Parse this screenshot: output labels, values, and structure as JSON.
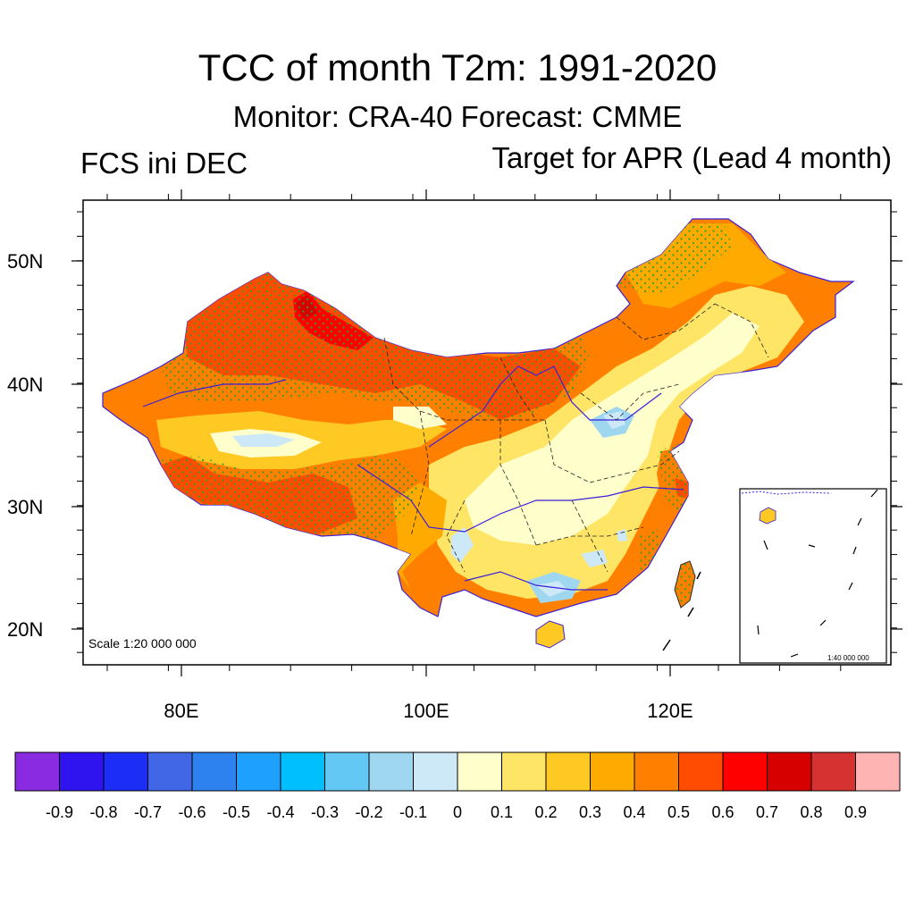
{
  "title": "TCC of month T2m: 1991-2020",
  "subtitle": "Monitor: CRA-40   Forecast: CMME",
  "left_label": "FCS ini DEC",
  "right_label": "Target for APR (Lead 4 month)",
  "scale_main": "Scale 1:20 000 000",
  "scale_inset": "1:40 000 000",
  "lat_ticks": [
    "50N",
    "40N",
    "30N",
    "20N"
  ],
  "lon_ticks": [
    "80E",
    "100E",
    "120E"
  ],
  "colorbar": {
    "colors": [
      "#8a2be2",
      "#3014f0",
      "#1c2ef5",
      "#4166e6",
      "#2e82f0",
      "#1ea0ff",
      "#00bfff",
      "#64c8f5",
      "#a0d7f0",
      "#cde9f7",
      "#ffffcc",
      "#ffe566",
      "#ffc924",
      "#ffaa00",
      "#ff8000",
      "#ff4c00",
      "#ff0000",
      "#d70000",
      "#d73232",
      "#ffb4b4"
    ],
    "labels": [
      "-0.9",
      "-0.8",
      "-0.7",
      "-0.6",
      "-0.5",
      "-0.4",
      "-0.3",
      "-0.2",
      "-0.1",
      "0",
      "0.1",
      "0.2",
      "0.3",
      "0.4",
      "0.5",
      "0.6",
      "0.7",
      "0.8",
      "0.9"
    ]
  },
  "palette": {
    "coast": "#3a1fd8",
    "border": "#222222",
    "dots": "#2ca02c"
  }
}
